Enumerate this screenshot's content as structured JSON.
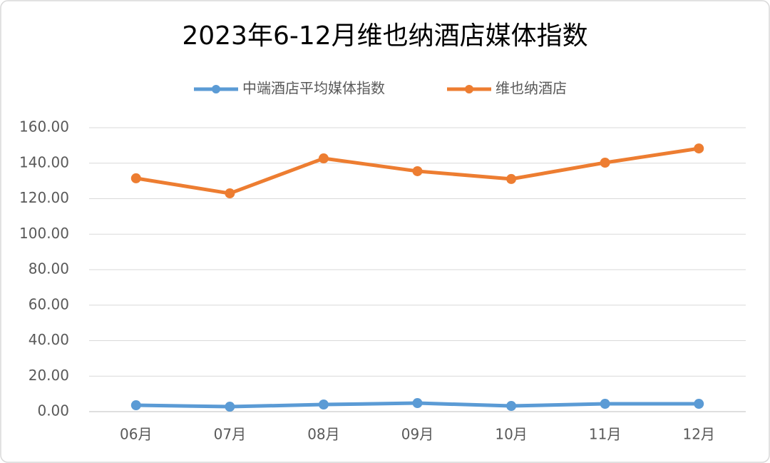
{
  "chart_data": {
    "type": "line",
    "title": "2023年6-12月维也纳酒店媒体指数",
    "categories": [
      "06月",
      "07月",
      "08月",
      "09月",
      "10月",
      "11月",
      "12月"
    ],
    "series": [
      {
        "name": "中端酒店平均媒体指数",
        "color": "#5b9bd5",
        "values": [
          3.6,
          2.8,
          4.0,
          4.8,
          3.2,
          4.4,
          4.4
        ]
      },
      {
        "name": "维也纳酒店",
        "color": "#ed7d31",
        "values": [
          131.5,
          123.0,
          142.7,
          135.5,
          131.1,
          140.3,
          148.3
        ]
      }
    ],
    "ylim": [
      0,
      160
    ],
    "yticks": [
      {
        "value": 0,
        "label": "0.00"
      },
      {
        "value": 20,
        "label": "20.00"
      },
      {
        "value": 40,
        "label": "40.00"
      },
      {
        "value": 60,
        "label": "60.00"
      },
      {
        "value": 80,
        "label": "80.00"
      },
      {
        "value": 100,
        "label": "100.00"
      },
      {
        "value": 120,
        "label": "120.00"
      },
      {
        "value": 140,
        "label": "140.00"
      },
      {
        "value": 160,
        "label": "160.00"
      }
    ],
    "grid": true,
    "legend": "top"
  }
}
